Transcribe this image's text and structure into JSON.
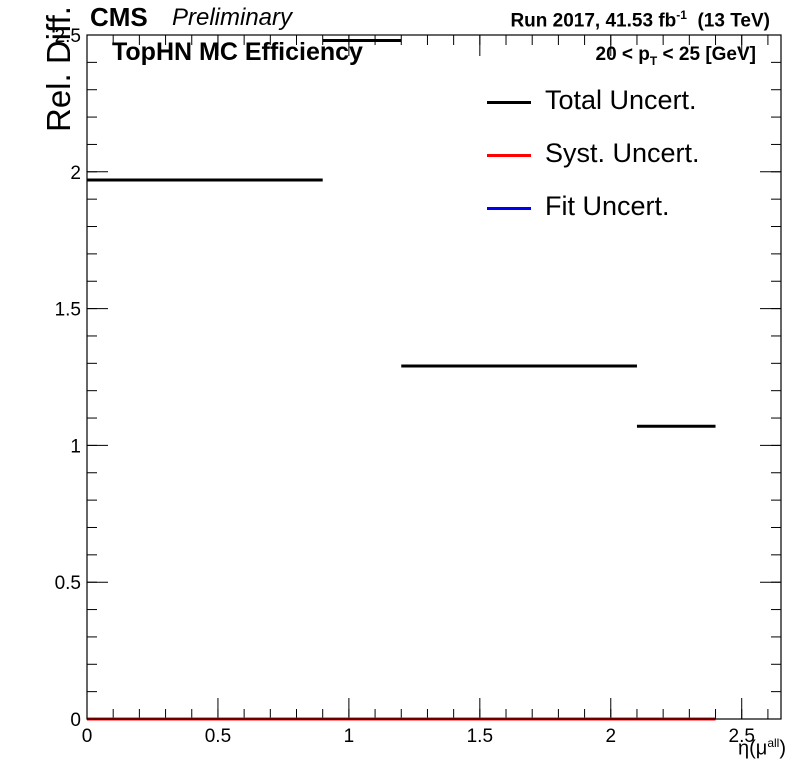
{
  "header": {
    "experiment": "CMS",
    "status": "Preliminary",
    "run_label": "Run 2017,  41.53 fb",
    "lumi_exponent": "-1",
    "energy": "(13 TeV)",
    "subtitle": "TopHN MC Efficiency",
    "pt_range_prefix": "20 < p",
    "pt_range_sub": "T",
    "pt_range_suffix": " < 25 [GeV]"
  },
  "chart_data": {
    "type": "line",
    "ylabel": "Rel. Diff. [%]",
    "xlabel_main": "η(μ",
    "xlabel_sup": "all",
    "xlabel_end": ")",
    "xlim": [
      0,
      2.65
    ],
    "ylim": [
      0,
      2.5
    ],
    "x_ticks": [
      {
        "value": 0,
        "label": "0"
      },
      {
        "value": 0.5,
        "label": "0.5"
      },
      {
        "value": 1,
        "label": "1"
      },
      {
        "value": 1.5,
        "label": "1.5"
      },
      {
        "value": 2,
        "label": "2"
      },
      {
        "value": 2.5,
        "label": "2.5"
      }
    ],
    "y_ticks": [
      {
        "value": 0,
        "label": "0"
      },
      {
        "value": 0.5,
        "label": "0.5"
      },
      {
        "value": 1,
        "label": "1"
      },
      {
        "value": 1.5,
        "label": "1.5"
      },
      {
        "value": 2,
        "label": "2"
      },
      {
        "value": 2.5,
        "label": "2.5"
      }
    ],
    "series": [
      {
        "name": "Total Uncert.",
        "color": "#000000",
        "bins": [
          {
            "x_low": 0.0,
            "x_high": 0.9,
            "value": 1.97
          },
          {
            "x_low": 0.9,
            "x_high": 1.2,
            "value": 2.48
          },
          {
            "x_low": 1.2,
            "x_high": 2.1,
            "value": 1.29
          },
          {
            "x_low": 2.1,
            "x_high": 2.4,
            "value": 1.07
          }
        ]
      },
      {
        "name": "Syst. Uncert.",
        "color": "#ff0000",
        "bins": [
          {
            "x_low": 0.0,
            "x_high": 0.9,
            "value": 0
          },
          {
            "x_low": 0.9,
            "x_high": 1.2,
            "value": 0
          },
          {
            "x_low": 1.2,
            "x_high": 2.1,
            "value": 0
          },
          {
            "x_low": 2.1,
            "x_high": 2.4,
            "value": 0
          }
        ]
      },
      {
        "name": "Fit Uncert.",
        "color": "#0000ee",
        "bins": [
          {
            "x_low": 0.0,
            "x_high": 0.9,
            "value": 0
          },
          {
            "x_low": 0.9,
            "x_high": 1.2,
            "value": 0
          },
          {
            "x_low": 1.2,
            "x_high": 2.1,
            "value": 0
          },
          {
            "x_low": 2.1,
            "x_high": 2.4,
            "value": 0
          }
        ]
      }
    ],
    "legend_position": "top-right"
  }
}
